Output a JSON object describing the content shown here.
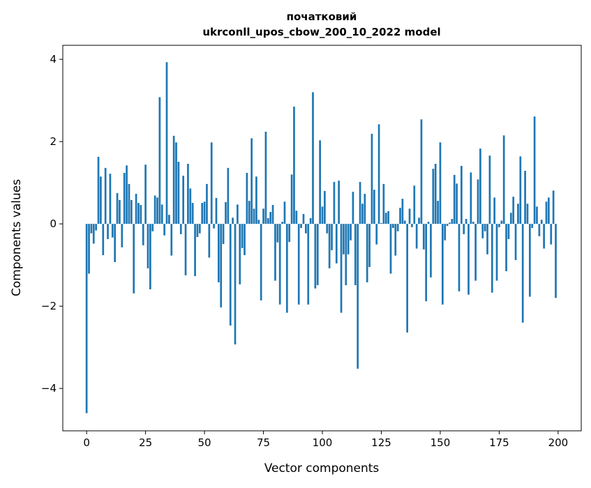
{
  "chart_data": {
    "type": "bar",
    "title_lines": [
      "початковий",
      "ukrconll_upos_cbow_200_10_2022 model"
    ],
    "xlabel": "Vector components",
    "ylabel": "Components values",
    "xlim": [
      -10.1,
      209.8
    ],
    "ylim": [
      -5.03,
      4.34
    ],
    "xticks": [
      0,
      25,
      50,
      75,
      100,
      125,
      150,
      175,
      200
    ],
    "yticks": [
      -4,
      -2,
      0,
      2,
      4
    ],
    "ytick_labels": [
      "−4",
      "−2",
      "0",
      "2",
      "4"
    ],
    "grid": false,
    "bar_width": 0.8,
    "color": "#1f77b4",
    "values": [
      -4.6,
      -1.21,
      -0.23,
      -0.48,
      -0.16,
      1.63,
      1.15,
      -0.76,
      1.36,
      -0.37,
      1.22,
      -0.33,
      -0.93,
      0.75,
      0.58,
      -0.57,
      1.24,
      1.42,
      0.97,
      0.58,
      -1.69,
      0.73,
      0.51,
      0.46,
      -0.52,
      1.44,
      -1.08,
      -1.59,
      -0.18,
      0.69,
      0.64,
      3.08,
      0.47,
      -0.28,
      3.93,
      0.22,
      -0.77,
      2.14,
      1.98,
      1.51,
      -0.25,
      1.17,
      -1.25,
      1.46,
      0.86,
      0.51,
      -1.27,
      -0.32,
      -0.23,
      0.51,
      0.54,
      0.97,
      -0.82,
      1.98,
      -0.11,
      0.63,
      -1.42,
      -2.03,
      -0.49,
      0.53,
      1.36,
      -2.47,
      0.15,
      -2.93,
      0.47,
      -1.47,
      -0.59,
      -0.76,
      1.24,
      0.56,
      2.08,
      0.37,
      1.15,
      0.1,
      -1.86,
      0.37,
      2.24,
      0.14,
      0.29,
      0.46,
      -1.38,
      -0.45,
      -1.96,
      0.05,
      0.54,
      -2.16,
      -0.44,
      1.2,
      2.85,
      0.32,
      -1.96,
      -0.1,
      0.24,
      -0.23,
      -1.96,
      0.14,
      3.2,
      -1.57,
      -1.49,
      2.03,
      0.42,
      0.8,
      -0.23,
      -1.08,
      -0.64,
      1.02,
      -0.96,
      1.05,
      -2.16,
      -0.74,
      -1.49,
      -0.74,
      -0.4,
      0.78,
      -1.49,
      -3.52,
      1.02,
      0.49,
      0.73,
      -1.42,
      -1.05,
      2.19,
      0.83,
      -0.5,
      2.42,
      0.02,
      0.97,
      0.27,
      0.31,
      -1.21,
      -0.1,
      -0.77,
      -0.18,
      0.39,
      0.61,
      0.08,
      -2.64,
      0.37,
      -0.08,
      0.93,
      -0.6,
      0.15,
      2.54,
      -0.62,
      -1.88,
      0.05,
      -1.3,
      1.34,
      1.46,
      0.56,
      1.98,
      -1.96,
      -0.4,
      -0.05,
      0.03,
      0.12,
      1.19,
      0.98,
      -1.64,
      1.41,
      -0.25,
      0.12,
      -1.72,
      1.25,
      0.05,
      -1.38,
      1.08,
      1.83,
      -0.35,
      -0.18,
      -0.74,
      1.66,
      -1.67,
      0.64,
      -1.38,
      -0.08,
      0.08,
      2.15,
      -1.15,
      -0.37,
      0.27,
      0.66,
      -0.88,
      0.49,
      1.64,
      -2.4,
      1.29,
      0.49,
      -1.77,
      -0.1,
      2.61,
      0.42,
      -0.3,
      0.1,
      -0.6,
      0.54,
      0.64,
      -0.5,
      0.81,
      -1.8
    ]
  }
}
